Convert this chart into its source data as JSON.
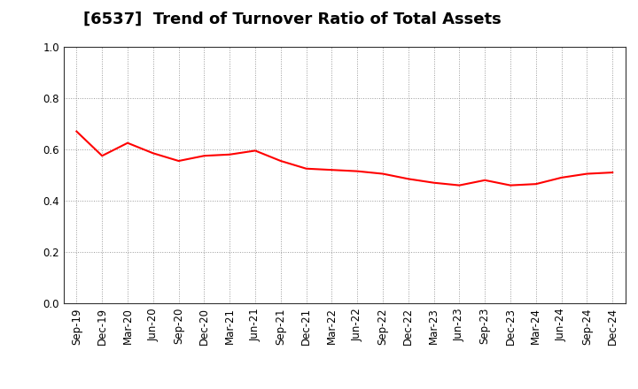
{
  "title": "[6537]  Trend of Turnover Ratio of Total Assets",
  "labels": [
    "Sep-19",
    "Dec-19",
    "Mar-20",
    "Jun-20",
    "Sep-20",
    "Dec-20",
    "Mar-21",
    "Jun-21",
    "Sep-21",
    "Dec-21",
    "Mar-22",
    "Jun-22",
    "Sep-22",
    "Dec-22",
    "Mar-23",
    "Jun-23",
    "Sep-23",
    "Dec-23",
    "Mar-24",
    "Jun-24",
    "Sep-24",
    "Dec-24"
  ],
  "values": [
    0.67,
    0.575,
    0.625,
    0.585,
    0.555,
    0.575,
    0.58,
    0.595,
    0.555,
    0.525,
    0.52,
    0.515,
    0.505,
    0.485,
    0.47,
    0.46,
    0.48,
    0.46,
    0.465,
    0.49,
    0.505,
    0.51
  ],
  "line_color": "#ff0000",
  "line_width": 1.5,
  "ylim": [
    0.0,
    1.0
  ],
  "yticks": [
    0.0,
    0.2,
    0.4,
    0.6,
    0.8,
    1.0
  ],
  "background_color": "#ffffff",
  "grid_color": "#999999",
  "title_fontsize": 13,
  "tick_fontsize": 8.5,
  "spine_color": "#333333"
}
